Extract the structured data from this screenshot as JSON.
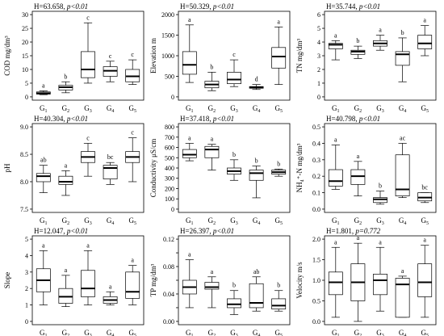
{
  "chart_data": [
    {
      "type": "boxplot",
      "stat_prefix": "H=63.658, ",
      "stat_p": "p<0.01",
      "ylabel": "COD mg/dm³",
      "ylim": [
        0,
        30
      ],
      "yticks": [
        0,
        5,
        10,
        15,
        20,
        25,
        30
      ],
      "categories": [
        "G1",
        "G2",
        "G3",
        "G4",
        "G5"
      ],
      "letters": [
        "a",
        "b",
        "c",
        "c",
        "c"
      ],
      "boxes": [
        {
          "min": 0.8,
          "q1": 1.0,
          "median": 1.3,
          "q3": 1.8,
          "max": 2.2
        },
        {
          "min": 1.5,
          "q1": 2.5,
          "median": 3.5,
          "q3": 4.2,
          "max": 5.5
        },
        {
          "min": 5.0,
          "q1": 7.0,
          "median": 10.0,
          "q3": 16.5,
          "max": 27.0
        },
        {
          "min": 5.5,
          "q1": 7.5,
          "median": 9.5,
          "q3": 11.0,
          "max": 13.0
        },
        {
          "min": 4.5,
          "q1": 5.5,
          "median": 7.5,
          "q3": 10.0,
          "max": 13.5
        }
      ]
    },
    {
      "type": "boxplot",
      "stat_prefix": "H=50.329, ",
      "stat_p": "p<0.01",
      "ylabel": "Elevation m",
      "ylim": [
        0,
        2000
      ],
      "yticks": [
        0,
        500,
        1000,
        1500,
        2000
      ],
      "categories": [
        "G1",
        "G2",
        "G3",
        "G4",
        "G5"
      ],
      "letters": [
        "a",
        "b",
        "c",
        "d",
        "a"
      ],
      "boxes": [
        {
          "min": 350,
          "q1": 550,
          "median": 780,
          "q3": 1100,
          "max": 1750
        },
        {
          "min": 150,
          "q1": 220,
          "median": 300,
          "q3": 380,
          "max": 600
        },
        {
          "min": 250,
          "q1": 320,
          "median": 420,
          "q3": 600,
          "max": 900
        },
        {
          "min": 180,
          "q1": 210,
          "median": 230,
          "q3": 250,
          "max": 300
        },
        {
          "min": 300,
          "q1": 700,
          "median": 980,
          "q3": 1200,
          "max": 1700
        }
      ]
    },
    {
      "type": "boxplot",
      "stat_prefix": "H=35.744, ",
      "stat_p": "p<0.01",
      "ylabel": "TN mg/dm³",
      "ylim": [
        0,
        6
      ],
      "yticks": [
        0,
        1,
        2,
        3,
        4,
        5,
        6
      ],
      "categories": [
        "G1",
        "G2",
        "G3",
        "G4",
        "G5"
      ],
      "letters": [
        "a",
        "b",
        "a",
        "b",
        "a"
      ],
      "boxes": [
        {
          "min": 2.7,
          "q1": 3.5,
          "median": 3.8,
          "q3": 3.9,
          "max": 4.1
        },
        {
          "min": 2.8,
          "q1": 3.1,
          "median": 3.3,
          "q3": 3.4,
          "max": 3.7
        },
        {
          "min": 3.4,
          "q1": 3.7,
          "median": 3.9,
          "q3": 4.1,
          "max": 4.5
        },
        {
          "min": 1.1,
          "q1": 2.3,
          "median": 3.1,
          "q3": 3.3,
          "max": 4.3
        },
        {
          "min": 3.0,
          "q1": 3.5,
          "median": 3.9,
          "q3": 4.5,
          "max": 5.2
        }
      ]
    },
    {
      "type": "boxplot",
      "stat_prefix": "H=40.304, ",
      "stat_p": "p<0.01",
      "ylabel": "pH",
      "ylim": [
        7.5,
        9.0
      ],
      "yticks": [
        7.5,
        8.0,
        8.5,
        9.0
      ],
      "ytick_labels": [
        "7.5",
        "8.0",
        "8.5",
        "9.0"
      ],
      "categories": [
        "G1",
        "G2",
        "G3",
        "G4",
        "G5"
      ],
      "letters": [
        "ab",
        "a",
        "c",
        "bc",
        "c"
      ],
      "boxes": [
        {
          "min": 7.8,
          "q1": 8.0,
          "median": 8.1,
          "q3": 8.15,
          "max": 8.3
        },
        {
          "min": 7.75,
          "q1": 7.95,
          "median": 8.0,
          "q3": 8.1,
          "max": 8.2
        },
        {
          "min": 8.1,
          "q1": 8.35,
          "median": 8.45,
          "q3": 8.55,
          "max": 8.7
        },
        {
          "min": 7.95,
          "q1": 8.05,
          "median": 8.25,
          "q3": 8.3,
          "max": 8.35
        },
        {
          "min": 8.0,
          "q1": 8.35,
          "median": 8.45,
          "q3": 8.55,
          "max": 8.8
        }
      ]
    },
    {
      "type": "boxplot",
      "stat_prefix": "H=37.418, ",
      "stat_p": "p<0.01",
      "ylabel": "Conductivity μS/cm",
      "ylim": [
        0,
        800
      ],
      "yticks": [
        0,
        100,
        200,
        300,
        400,
        500,
        600,
        700,
        800
      ],
      "categories": [
        "G1",
        "G2",
        "G3",
        "G4",
        "G5"
      ],
      "letters": [
        "a",
        "a",
        "b",
        "b",
        "b"
      ],
      "boxes": [
        {
          "min": 470,
          "q1": 500,
          "median": 530,
          "q3": 580,
          "max": 640
        },
        {
          "min": 380,
          "q1": 500,
          "median": 580,
          "q3": 610,
          "max": 630
        },
        {
          "min": 280,
          "q1": 340,
          "median": 370,
          "q3": 400,
          "max": 480
        },
        {
          "min": 110,
          "q1": 280,
          "median": 350,
          "q3": 380,
          "max": 420
        },
        {
          "min": 320,
          "q1": 340,
          "median": 360,
          "q3": 380,
          "max": 390
        }
      ]
    },
    {
      "type": "boxplot",
      "stat_prefix": "H=40.798, ",
      "stat_p": "p<0.01",
      "ylabel": "NH₄⁺-N mg/dm³",
      "ylim": [
        0,
        0.5
      ],
      "yticks": [
        0,
        0.1,
        0.2,
        0.3,
        0.4,
        0.5
      ],
      "ytick_labels": [
        "0.0",
        "0.1",
        "0.2",
        "0.3",
        "0.4",
        "0.5"
      ],
      "categories": [
        "G1",
        "G2",
        "G3",
        "G4",
        "G5"
      ],
      "letters": [
        "a",
        "a",
        "b",
        "ac",
        "bc"
      ],
      "boxes": [
        {
          "min": 0.12,
          "q1": 0.14,
          "median": 0.17,
          "q3": 0.24,
          "max": 0.39
        },
        {
          "min": 0.08,
          "q1": 0.15,
          "median": 0.2,
          "q3": 0.24,
          "max": 0.29
        },
        {
          "min": 0.03,
          "q1": 0.04,
          "median": 0.06,
          "q3": 0.07,
          "max": 0.11
        },
        {
          "min": 0.07,
          "q1": 0.08,
          "median": 0.12,
          "q3": 0.33,
          "max": 0.4
        },
        {
          "min": 0.04,
          "q1": 0.05,
          "median": 0.07,
          "q3": 0.1,
          "max": 0.1
        }
      ]
    },
    {
      "type": "boxplot",
      "stat_prefix": "H=12.047, ",
      "stat_p": "p<0.01",
      "ylabel": "Slope",
      "ylim": [
        0,
        5
      ],
      "yticks": [
        0,
        1,
        2,
        3,
        4,
        5
      ],
      "categories": [
        "G1",
        "G2",
        "G3",
        "G4",
        "G5"
      ],
      "letters": [
        "a",
        "a",
        "a",
        "a",
        "a"
      ],
      "boxes": [
        {
          "min": 1.0,
          "q1": 1.8,
          "median": 2.5,
          "q3": 3.2,
          "max": 4.3
        },
        {
          "min": 0.9,
          "q1": 1.1,
          "median": 1.5,
          "q3": 2.0,
          "max": 2.8
        },
        {
          "min": 1.0,
          "q1": 1.5,
          "median": 2.0,
          "q3": 3.1,
          "max": 4.3
        },
        {
          "min": 1.0,
          "q1": 1.1,
          "median": 1.3,
          "q3": 1.5,
          "max": 1.8
        },
        {
          "min": 1.0,
          "q1": 1.4,
          "median": 1.8,
          "q3": 3.0,
          "max": 3.4
        }
      ]
    },
    {
      "type": "boxplot",
      "stat_prefix": "H=26.397, ",
      "stat_p": "p<0.01",
      "ylabel": "TP mg/dm³",
      "ylim": [
        0,
        0.12
      ],
      "yticks": [
        0,
        0.02,
        0.04,
        0.06,
        0.08,
        0.1,
        0.12
      ],
      "ytick_labels": [
        "0.00",
        "",
        "0.04",
        "",
        "0.08",
        "",
        "0.12"
      ],
      "categories": [
        "G1",
        "G2",
        "G3",
        "G4",
        "G5"
      ],
      "letters": [
        "a",
        "a",
        "b",
        "ab",
        "b"
      ],
      "boxes": [
        {
          "min": 0.02,
          "q1": 0.04,
          "median": 0.05,
          "q3": 0.06,
          "max": 0.09
        },
        {
          "min": 0.02,
          "q1": 0.047,
          "median": 0.05,
          "q3": 0.057,
          "max": 0.065
        },
        {
          "min": 0.01,
          "q1": 0.02,
          "median": 0.025,
          "q3": 0.033,
          "max": 0.045
        },
        {
          "min": 0.015,
          "q1": 0.02,
          "median": 0.027,
          "q3": 0.055,
          "max": 0.065
        },
        {
          "min": 0.015,
          "q1": 0.018,
          "median": 0.023,
          "q3": 0.033,
          "max": 0.045
        }
      ]
    },
    {
      "type": "boxplot",
      "stat_prefix": "H=1.801, ",
      "stat_p": "p=0.772",
      "ylabel": "Velocity m/s",
      "ylim": [
        0,
        2.0
      ],
      "yticks": [
        0,
        0.5,
        1.0,
        1.5,
        2.0
      ],
      "ytick_labels": [
        "0.0",
        "0.5",
        "1.0",
        "1.5",
        "2.0"
      ],
      "categories": [
        "G1",
        "G2",
        "G3",
        "G4",
        "G5"
      ],
      "letters": [
        "a",
        "a",
        "a",
        "a",
        "a"
      ],
      "boxes": [
        {
          "min": 0.1,
          "q1": 0.65,
          "median": 0.95,
          "q3": 1.2,
          "max": 1.8
        },
        {
          "min": 0.0,
          "q1": 0.5,
          "median": 0.95,
          "q3": 1.4,
          "max": 1.9
        },
        {
          "min": 0.25,
          "q1": 0.65,
          "median": 1.0,
          "q3": 1.15,
          "max": 1.8
        },
        {
          "min": 0.1,
          "q1": 0.1,
          "median": 0.9,
          "q3": 1.05,
          "max": 1.1
        },
        {
          "min": 0.1,
          "q1": 0.6,
          "median": 0.95,
          "q3": 1.4,
          "max": 1.85
        }
      ]
    }
  ]
}
